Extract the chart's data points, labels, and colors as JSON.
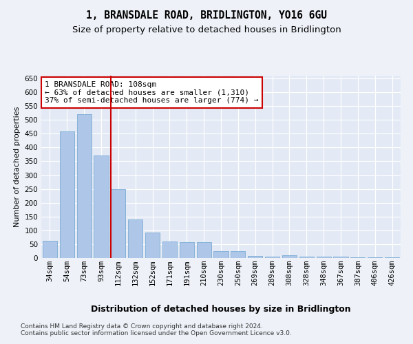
{
  "title": "1, BRANSDALE ROAD, BRIDLINGTON, YO16 6GU",
  "subtitle": "Size of property relative to detached houses in Bridlington",
  "xlabel": "Distribution of detached houses by size in Bridlington",
  "ylabel": "Number of detached properties",
  "categories": [
    "34sqm",
    "54sqm",
    "73sqm",
    "93sqm",
    "112sqm",
    "132sqm",
    "152sqm",
    "171sqm",
    "191sqm",
    "210sqm",
    "230sqm",
    "250sqm",
    "269sqm",
    "289sqm",
    "308sqm",
    "328sqm",
    "348sqm",
    "367sqm",
    "387sqm",
    "406sqm",
    "426sqm"
  ],
  "values": [
    62,
    458,
    520,
    370,
    248,
    140,
    93,
    60,
    58,
    57,
    25,
    25,
    8,
    5,
    10,
    5,
    6,
    5,
    3,
    2,
    2
  ],
  "bar_color": "#aec6e8",
  "bar_edge_color": "#7aadd4",
  "vline_x_index": 4,
  "vline_color": "#cc0000",
  "annotation_text": "1 BRANSDALE ROAD: 108sqm\n← 63% of detached houses are smaller (1,310)\n37% of semi-detached houses are larger (774) →",
  "annotation_box_color": "#ffffff",
  "annotation_box_edge_color": "#cc0000",
  "ylim": [
    0,
    660
  ],
  "yticks": [
    0,
    50,
    100,
    150,
    200,
    250,
    300,
    350,
    400,
    450,
    500,
    550,
    600,
    650
  ],
  "footer_text": "Contains HM Land Registry data © Crown copyright and database right 2024.\nContains public sector information licensed under the Open Government Licence v3.0.",
  "background_color": "#eef2f8",
  "plot_background_color": "#e4eaf5",
  "grid_color": "#ffffff",
  "title_fontsize": 10.5,
  "subtitle_fontsize": 9.5,
  "xlabel_fontsize": 9,
  "ylabel_fontsize": 8,
  "tick_fontsize": 7.5,
  "annotation_fontsize": 8,
  "footer_fontsize": 6.5
}
